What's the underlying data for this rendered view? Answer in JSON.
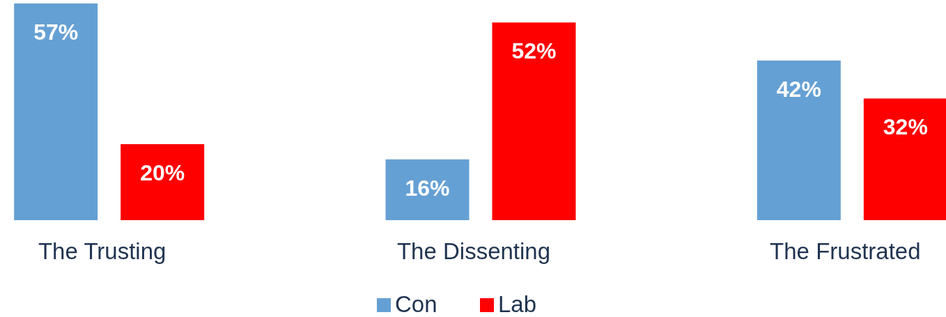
{
  "chart_data": {
    "type": "bar",
    "categories": [
      "The Trusting",
      "The Dissenting",
      "The Frustrated"
    ],
    "series": [
      {
        "name": "Con",
        "color": "#65a0d4",
        "values": [
          57,
          16,
          42
        ],
        "value_labels": [
          "57%",
          "16%",
          "42%"
        ]
      },
      {
        "name": "Lab",
        "color": "#ff0000",
        "values": [
          20,
          52,
          32
        ],
        "value_labels": [
          "20%",
          "52%",
          "32%"
        ]
      }
    ],
    "tick_labels": "x",
    "legend": "bottom"
  }
}
